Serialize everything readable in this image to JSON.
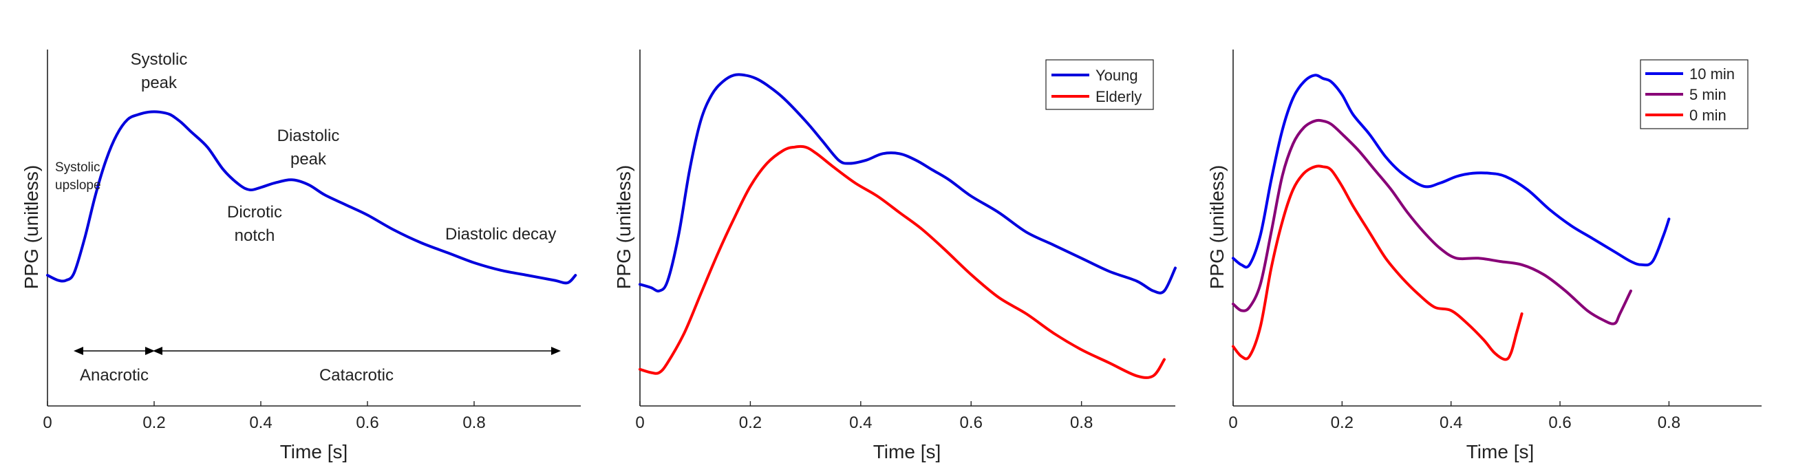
{
  "chart_data": [
    {
      "type": "line",
      "xlabel": "Time [s]",
      "ylabel": "PPG (unitless)",
      "xlim": [
        0,
        1.0
      ],
      "ylim": [
        0,
        1
      ],
      "xticks": [
        0,
        0.2,
        0.4,
        0.6,
        0.8
      ],
      "xtick_labels": [
        "0",
        "0.2",
        "0.4",
        "0.6",
        "0.8"
      ],
      "legend": null,
      "series": [
        {
          "color": "#0000dd",
          "x": [
            0,
            0.02,
            0.035,
            0.05,
            0.07,
            0.09,
            0.11,
            0.13,
            0.15,
            0.17,
            0.19,
            0.21,
            0.23,
            0.25,
            0.27,
            0.3,
            0.33,
            0.36,
            0.38,
            0.4,
            0.43,
            0.46,
            0.49,
            0.52,
            0.56,
            0.6,
            0.65,
            0.7,
            0.75,
            0.8,
            0.85,
            0.9,
            0.95,
            0.975,
            0.99
          ],
          "y": [
            0.26,
            0.24,
            0.24,
            0.27,
            0.41,
            0.58,
            0.72,
            0.82,
            0.88,
            0.9,
            0.91,
            0.91,
            0.9,
            0.87,
            0.83,
            0.77,
            0.68,
            0.62,
            0.6,
            0.61,
            0.63,
            0.64,
            0.62,
            0.58,
            0.54,
            0.5,
            0.44,
            0.39,
            0.35,
            0.31,
            0.28,
            0.26,
            0.24,
            0.23,
            0.26
          ]
        }
      ],
      "annotations": {
        "systolic_peak": [
          "Systolic",
          "peak"
        ],
        "systolic_upslope": [
          "Systolic",
          "upslope"
        ],
        "diastolic_peak": [
          "Diastolic",
          "peak"
        ],
        "dicrotic_notch": [
          "Dicrotic",
          "notch"
        ],
        "diastolic_decay": "Diastolic decay",
        "anacrotic": "Anacrotic",
        "catacrotic": "Catacrotic"
      }
    },
    {
      "type": "line",
      "xlabel": "Time [s]",
      "ylabel": "PPG (unitless)",
      "xlim": [
        0,
        0.97
      ],
      "ylim": [
        0,
        1
      ],
      "xticks": [
        0,
        0.2,
        0.4,
        0.6,
        0.8
      ],
      "xtick_labels": [
        "0",
        "0.2",
        "0.4",
        "0.6",
        "0.8"
      ],
      "legend": "top-right",
      "series": [
        {
          "name": "Young",
          "color": "#0000dd",
          "x": [
            0,
            0.02,
            0.035,
            0.05,
            0.07,
            0.09,
            0.11,
            0.13,
            0.15,
            0.17,
            0.19,
            0.21,
            0.23,
            0.26,
            0.3,
            0.33,
            0.36,
            0.38,
            0.41,
            0.44,
            0.47,
            0.5,
            0.53,
            0.56,
            0.6,
            0.65,
            0.7,
            0.75,
            0.8,
            0.85,
            0.9,
            0.93,
            0.95,
            0.97
          ],
          "y": [
            0.33,
            0.32,
            0.31,
            0.34,
            0.48,
            0.68,
            0.83,
            0.91,
            0.95,
            0.97,
            0.97,
            0.96,
            0.94,
            0.9,
            0.83,
            0.77,
            0.71,
            0.7,
            0.71,
            0.73,
            0.73,
            0.71,
            0.68,
            0.65,
            0.6,
            0.55,
            0.49,
            0.45,
            0.41,
            0.37,
            0.34,
            0.31,
            0.31,
            0.38
          ]
        },
        {
          "name": "Elderly",
          "color": "#ff0000",
          "x": [
            0,
            0.02,
            0.035,
            0.05,
            0.08,
            0.11,
            0.14,
            0.17,
            0.2,
            0.23,
            0.26,
            0.28,
            0.3,
            0.32,
            0.35,
            0.39,
            0.43,
            0.47,
            0.51,
            0.55,
            0.6,
            0.65,
            0.7,
            0.75,
            0.8,
            0.85,
            0.9,
            0.93,
            0.95
          ],
          "y": [
            0.07,
            0.06,
            0.06,
            0.09,
            0.18,
            0.3,
            0.42,
            0.53,
            0.63,
            0.7,
            0.74,
            0.75,
            0.75,
            0.73,
            0.69,
            0.64,
            0.6,
            0.55,
            0.5,
            0.44,
            0.36,
            0.29,
            0.24,
            0.18,
            0.13,
            0.09,
            0.05,
            0.05,
            0.1
          ]
        }
      ]
    },
    {
      "type": "line",
      "xlabel": "Time [s]",
      "ylabel": "PPG (unitless)",
      "xlim": [
        0,
        0.97
      ],
      "ylim": [
        0,
        1
      ],
      "xticks": [
        0,
        0.2,
        0.4,
        0.6,
        0.8
      ],
      "xtick_labels": [
        "0",
        "0.2",
        "0.4",
        "0.6",
        "0.8"
      ],
      "legend": "top-right",
      "series": [
        {
          "name": "10 min",
          "color": "#0000ee",
          "x": [
            0,
            0.015,
            0.03,
            0.05,
            0.07,
            0.09,
            0.11,
            0.13,
            0.15,
            0.165,
            0.18,
            0.2,
            0.22,
            0.25,
            0.28,
            0.31,
            0.35,
            0.38,
            0.41,
            0.44,
            0.47,
            0.5,
            0.54,
            0.58,
            0.62,
            0.66,
            0.7,
            0.73,
            0.75,
            0.77,
            0.79,
            0.8
          ],
          "y": [
            0.41,
            0.39,
            0.39,
            0.48,
            0.65,
            0.8,
            0.9,
            0.95,
            0.97,
            0.96,
            0.95,
            0.91,
            0.85,
            0.79,
            0.72,
            0.67,
            0.63,
            0.64,
            0.66,
            0.67,
            0.67,
            0.66,
            0.62,
            0.56,
            0.51,
            0.47,
            0.43,
            0.4,
            0.39,
            0.4,
            0.48,
            0.53
          ]
        },
        {
          "name": "5 min",
          "color": "#880077",
          "x": [
            0,
            0.015,
            0.03,
            0.05,
            0.07,
            0.09,
            0.11,
            0.13,
            0.15,
            0.165,
            0.18,
            0.2,
            0.23,
            0.26,
            0.29,
            0.32,
            0.35,
            0.38,
            0.41,
            0.45,
            0.49,
            0.53,
            0.57,
            0.61,
            0.65,
            0.68,
            0.7,
            0.71,
            0.73
          ],
          "y": [
            0.27,
            0.25,
            0.26,
            0.33,
            0.49,
            0.66,
            0.76,
            0.81,
            0.83,
            0.83,
            0.82,
            0.79,
            0.74,
            0.68,
            0.62,
            0.55,
            0.49,
            0.44,
            0.41,
            0.41,
            0.4,
            0.39,
            0.36,
            0.31,
            0.25,
            0.22,
            0.21,
            0.24,
            0.31
          ]
        },
        {
          "name": "0 min",
          "color": "#ff0000",
          "x": [
            0,
            0.015,
            0.03,
            0.05,
            0.07,
            0.09,
            0.11,
            0.13,
            0.15,
            0.165,
            0.18,
            0.2,
            0.22,
            0.25,
            0.28,
            0.31,
            0.34,
            0.37,
            0.4,
            0.43,
            0.46,
            0.48,
            0.5,
            0.51,
            0.52,
            0.53
          ],
          "y": [
            0.14,
            0.11,
            0.11,
            0.2,
            0.38,
            0.52,
            0.62,
            0.67,
            0.69,
            0.69,
            0.68,
            0.63,
            0.57,
            0.49,
            0.41,
            0.35,
            0.3,
            0.26,
            0.25,
            0.21,
            0.16,
            0.12,
            0.1,
            0.12,
            0.18,
            0.24
          ]
        }
      ]
    }
  ]
}
